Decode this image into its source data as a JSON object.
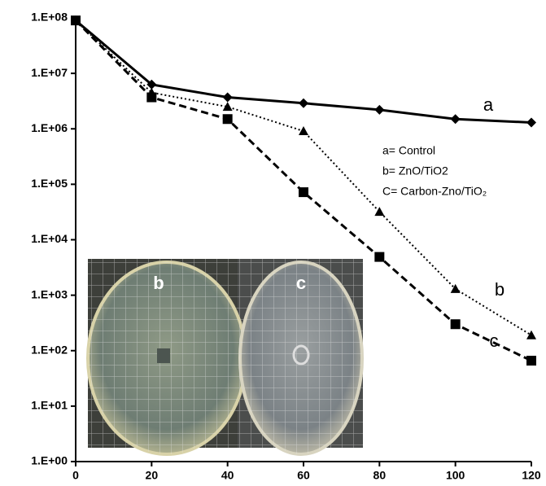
{
  "chart_data": {
    "type": "line",
    "log_y": true,
    "x": [
      0,
      20,
      40,
      60,
      80,
      100,
      120
    ],
    "series": [
      {
        "name": "a= Control",
        "color": "#000000",
        "line_style": "solid",
        "marker": "diamond",
        "values": [
          90000000,
          6300000,
          3700000,
          2900000,
          2200000,
          1500000,
          1300000
        ]
      },
      {
        "name": "b= ZnO/TiO2",
        "color": "#000000",
        "line_style": "dotted",
        "marker": "triangle",
        "values": [
          90000000,
          4500000,
          2500000,
          910000,
          32000,
          1300,
          190
        ]
      },
      {
        "name": "C= Carbon-Zno/TiO₂",
        "color": "#000000",
        "line_style": "dashed",
        "marker": "square",
        "values": [
          90000000,
          3700000,
          1500000,
          72000,
          4900,
          300,
          66
        ]
      }
    ],
    "xlim": [
      0,
      120
    ],
    "xticks": [
      0,
      20,
      40,
      60,
      80,
      100,
      120
    ],
    "ylim": [
      1,
      100000000
    ],
    "yticks": [
      {
        "value": 1,
        "label": "1.E+00"
      },
      {
        "value": 10,
        "label": "1.E+01"
      },
      {
        "value": 100,
        "label": "1.E+02"
      },
      {
        "value": 1000,
        "label": "1.E+03"
      },
      {
        "value": 10000,
        "label": "1.E+04"
      },
      {
        "value": 100000,
        "label": "1.E+05"
      },
      {
        "value": 1000000,
        "label": "1.E+06"
      },
      {
        "value": 10000000,
        "label": "1.E+07"
      },
      {
        "value": 100000000,
        "label": "1.E+08"
      }
    ],
    "annotations": [
      "a",
      "b",
      "c"
    ],
    "photo_labels": [
      "b",
      "c"
    ]
  }
}
